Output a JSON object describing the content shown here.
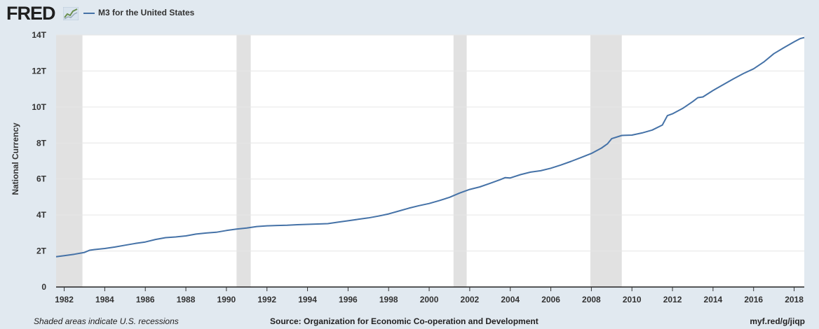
{
  "header": {
    "logo_text": "FRED",
    "logo_icon": "line-chart-icon",
    "legend_label": "M3 for the United States"
  },
  "footer": {
    "left": "Shaded areas indicate U.S. recessions",
    "source": "Source: Organization for Economic Co-operation and Development",
    "link": "myf.red/g/jiqp"
  },
  "colors": {
    "background": "#e1e9f0",
    "plot": "#ffffff",
    "series": "#4572a7",
    "recession": "#e1e1e1",
    "grid": "#e6e6e6"
  },
  "chart_data": {
    "type": "line",
    "title": "",
    "xlabel": "",
    "ylabel": "National Currency",
    "xlim": [
      1981.6,
      2018.5
    ],
    "ylim": [
      0,
      14
    ],
    "y_ticks": [
      0,
      2,
      4,
      6,
      8,
      10,
      12,
      14
    ],
    "y_tick_labels": [
      "0",
      "2T",
      "4T",
      "6T",
      "8T",
      "10T",
      "12T",
      "14T"
    ],
    "x_ticks": [
      1982,
      1984,
      1986,
      1988,
      1990,
      1992,
      1994,
      1996,
      1998,
      2000,
      2002,
      2004,
      2006,
      2008,
      2010,
      2012,
      2014,
      2016,
      2018
    ],
    "x_tick_labels": [
      "1982",
      "1984",
      "1986",
      "1988",
      "1990",
      "1992",
      "1994",
      "1996",
      "1998",
      "2000",
      "2002",
      "2004",
      "2006",
      "2008",
      "2010",
      "2012",
      "2014",
      "2016",
      "2018"
    ],
    "grid": true,
    "legend_position": "top-left",
    "recessions": [
      [
        1981.55,
        1982.9
      ],
      [
        1990.5,
        1991.2
      ],
      [
        2001.2,
        2001.85
      ],
      [
        2007.95,
        2009.5
      ]
    ],
    "series": [
      {
        "name": "M3 for the United States",
        "points": [
          [
            1981.6,
            1.68
          ],
          [
            1982.0,
            1.74
          ],
          [
            1982.5,
            1.82
          ],
          [
            1983.0,
            1.92
          ],
          [
            1983.25,
            2.04
          ],
          [
            1983.5,
            2.08
          ],
          [
            1984.0,
            2.14
          ],
          [
            1984.5,
            2.22
          ],
          [
            1985.0,
            2.32
          ],
          [
            1985.5,
            2.42
          ],
          [
            1986.0,
            2.5
          ],
          [
            1986.5,
            2.64
          ],
          [
            1987.0,
            2.74
          ],
          [
            1987.5,
            2.78
          ],
          [
            1988.0,
            2.84
          ],
          [
            1988.5,
            2.94
          ],
          [
            1989.0,
            3.0
          ],
          [
            1989.5,
            3.04
          ],
          [
            1990.0,
            3.14
          ],
          [
            1990.5,
            3.22
          ],
          [
            1991.0,
            3.28
          ],
          [
            1991.5,
            3.36
          ],
          [
            1992.0,
            3.4
          ],
          [
            1992.5,
            3.42
          ],
          [
            1993.0,
            3.43
          ],
          [
            1993.5,
            3.46
          ],
          [
            1994.0,
            3.48
          ],
          [
            1994.5,
            3.5
          ],
          [
            1995.0,
            3.52
          ],
          [
            1995.5,
            3.6
          ],
          [
            1996.0,
            3.68
          ],
          [
            1996.5,
            3.76
          ],
          [
            1997.0,
            3.84
          ],
          [
            1997.5,
            3.94
          ],
          [
            1998.0,
            4.06
          ],
          [
            1998.5,
            4.22
          ],
          [
            1999.0,
            4.38
          ],
          [
            1999.5,
            4.52
          ],
          [
            2000.0,
            4.64
          ],
          [
            2000.5,
            4.8
          ],
          [
            2001.0,
            4.98
          ],
          [
            2001.5,
            5.22
          ],
          [
            2002.0,
            5.42
          ],
          [
            2002.5,
            5.56
          ],
          [
            2003.0,
            5.76
          ],
          [
            2003.5,
            5.96
          ],
          [
            2003.75,
            6.08
          ],
          [
            2004.0,
            6.06
          ],
          [
            2004.5,
            6.24
          ],
          [
            2005.0,
            6.38
          ],
          [
            2005.5,
            6.46
          ],
          [
            2006.0,
            6.6
          ],
          [
            2006.5,
            6.78
          ],
          [
            2007.0,
            6.98
          ],
          [
            2007.5,
            7.2
          ],
          [
            2008.0,
            7.42
          ],
          [
            2008.5,
            7.72
          ],
          [
            2008.8,
            7.96
          ],
          [
            2009.0,
            8.24
          ],
          [
            2009.5,
            8.42
          ],
          [
            2010.0,
            8.44
          ],
          [
            2010.5,
            8.56
          ],
          [
            2011.0,
            8.72
          ],
          [
            2011.5,
            9.0
          ],
          [
            2011.75,
            9.52
          ],
          [
            2012.0,
            9.62
          ],
          [
            2012.5,
            9.92
          ],
          [
            2013.0,
            10.3
          ],
          [
            2013.25,
            10.52
          ],
          [
            2013.5,
            10.56
          ],
          [
            2014.0,
            10.92
          ],
          [
            2014.5,
            11.24
          ],
          [
            2015.0,
            11.56
          ],
          [
            2015.5,
            11.86
          ],
          [
            2016.0,
            12.12
          ],
          [
            2016.5,
            12.5
          ],
          [
            2017.0,
            12.96
          ],
          [
            2017.5,
            13.3
          ],
          [
            2018.0,
            13.62
          ],
          [
            2018.3,
            13.8
          ],
          [
            2018.5,
            13.86
          ]
        ]
      }
    ]
  }
}
